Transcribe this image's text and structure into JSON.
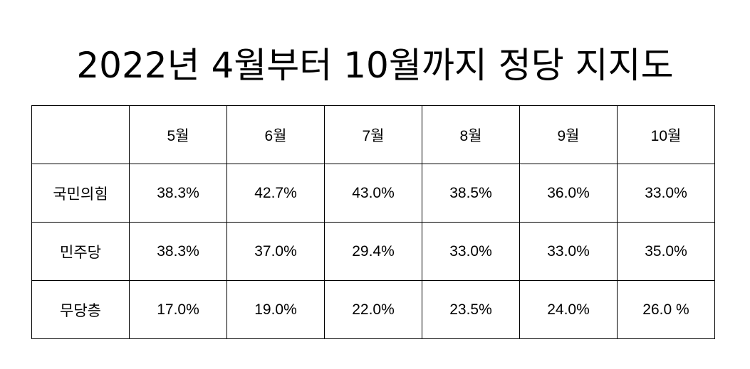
{
  "title": "2022년 4월부터 10월까지 정당 지지도",
  "table": {
    "corner": "",
    "months": [
      "5월",
      "6월",
      "7월",
      "8월",
      "9월",
      "10월"
    ],
    "rows": [
      {
        "party": "국민의힘",
        "values": [
          "38.3%",
          "42.7%",
          "43.0%",
          "38.5%",
          "36.0%",
          "33.0%"
        ]
      },
      {
        "party": "민주당",
        "values": [
          "38.3%",
          "37.0%",
          "29.4%",
          "33.0%",
          "33.0%",
          "35.0%"
        ]
      },
      {
        "party": "무당층",
        "values": [
          "17.0%",
          "19.0%",
          "22.0%",
          "23.5%",
          "24.0%",
          "26.0 %"
        ]
      }
    ]
  },
  "colors": {
    "text": "#000000",
    "border": "#000000",
    "background": "#ffffff"
  }
}
